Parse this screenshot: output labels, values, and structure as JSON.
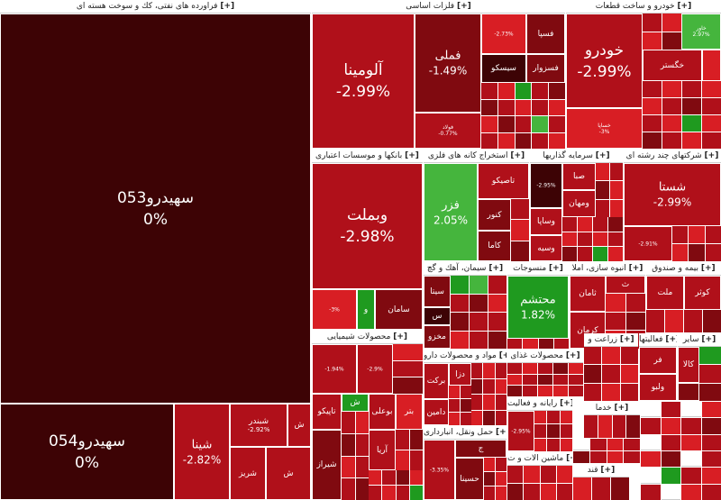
{
  "colors": {
    "darkest": "#3d0305",
    "dark": "#800a10",
    "red": "#b0101a",
    "bright": "#d81e24",
    "green": "#1f9a1f",
    "lightgreen": "#45b53d",
    "paper": "#ffffff"
  },
  "expand_mark": "[+]",
  "sectors": {
    "oil": "فراورده هاى نفتى، كك و سوخت هسته اى",
    "metals": "فلزات اساسى",
    "auto": "خودرو و ساخت قطعات",
    "banks": "بانكها و موسسات اعتبارى",
    "mining": "استخراج كانه هاى فلزى",
    "invest": "سرمايه گذاريها",
    "multi": "شركتهاى چند رشته اى",
    "chem": "محصولات شيميايى",
    "cement": "سيمان، آهك و گچ",
    "textile": "منسوجات",
    "mass": "انبوه سازى، املا",
    "insure": "بيمه و صندوق",
    "pharma": "مواد و محصولات دارو",
    "food": "محصولات غذاى",
    "agri": "زراعت و",
    "activity": "فعاليتها",
    "fin": "ساير",
    "it": "رايانه و فعاليت",
    "transport": "حمل ونقل، انبارداری",
    "machine": "ماشين الات و ت",
    "other1": "قند",
    "other2": "خدما"
  },
  "cells": {
    "sh053": {
      "name": "سهيدرو053",
      "pct": "0%"
    },
    "sh054": {
      "name": "سهيدرو054",
      "pct": "0%"
    },
    "shina": {
      "name": "شينا",
      "pct": "-2.82%"
    },
    "shabandar": {
      "name": "شبندر",
      "pct": "-2.92%"
    },
    "shariz": {
      "name": "شريز",
      "pct": ""
    },
    "oil_sh1": {
      "name": "ش",
      "pct": ""
    },
    "oil_sh2": {
      "name": "ش",
      "pct": ""
    },
    "alumina": {
      "name": "آلومينا",
      "pct": "-2.99%"
    },
    "fameli": {
      "name": "فملى",
      "pct": "-1.49%"
    },
    "fasa": {
      "name": "فسپا",
      "pct": ""
    },
    "fsazvar": {
      "name": "فسزوار",
      "pct": ""
    },
    "sisco": {
      "name": "سيسكو",
      "pct": ""
    },
    "met_s": {
      "name": "",
      "pct": "-2.73%"
    },
    "folad": {
      "name": "فولاد",
      "pct": "-0.77%"
    },
    "khodro": {
      "name": "خودرو",
      "pct": "-2.99%"
    },
    "khegostar": {
      "name": "خگستر",
      "pct": ""
    },
    "khsapa": {
      "name": "خساپا",
      "pct": "-3%"
    },
    "auto_s1": {
      "name": "خاور",
      "pct": "2.97%"
    },
    "vbemellat": {
      "name": "وبملت",
      "pct": "-2.98%"
    },
    "saman": {
      "name": "سامان",
      "pct": ""
    },
    "bank_v": {
      "name": "و",
      "pct": ""
    },
    "bank_s": {
      "name": "",
      "pct": "-3%"
    },
    "fazar": {
      "name": "فزر",
      "pct": "2.05%"
    },
    "tasiko": {
      "name": "تاصيكو",
      "pct": ""
    },
    "kaltor": {
      "name": "كنور",
      "pct": ""
    },
    "kama": {
      "name": "كاما",
      "pct": ""
    },
    "sabha": {
      "name": "صبا",
      "pct": ""
    },
    "vsapa": {
      "name": "وساپا",
      "pct": ""
    },
    "vmehan": {
      "name": "ومهان",
      "pct": ""
    },
    "vasieh": {
      "name": "وسيه",
      "pct": ""
    },
    "invest_s": {
      "name": "",
      "pct": "-2.95%"
    },
    "shasta": {
      "name": "شستا",
      "pct": "-2.99%"
    },
    "multi_s": {
      "name": "",
      "pct": "-2.91%"
    },
    "tapiko": {
      "name": "تاپيكو",
      "pct": ""
    },
    "shiraz": {
      "name": "شيراز",
      "pct": ""
    },
    "bouali": {
      "name": "بوعلى",
      "pct": ""
    },
    "aria": {
      "name": "آريا",
      "pct": ""
    },
    "chem_s1": {
      "name": "",
      "pct": "-1.94%"
    },
    "chem_s2": {
      "name": "",
      "pct": "-2.9%"
    },
    "chem_sh": {
      "name": "ش",
      "pct": ""
    },
    "sita": {
      "name": "سيتا",
      "pct": ""
    },
    "mkhzo": {
      "name": "مخزو",
      "pct": ""
    },
    "cem_s": {
      "name": "س",
      "pct": ""
    },
    "mohtesham": {
      "name": "محتشم",
      "pct": "1.82%"
    },
    "kerman": {
      "name": "كرمان",
      "pct": ""
    },
    "taman": {
      "name": "ثامان",
      "pct": ""
    },
    "mass_t": {
      "name": "ث",
      "pct": ""
    },
    "kotor": {
      "name": "كوثر",
      "pct": ""
    },
    "mellat": {
      "name": "ملت",
      "pct": ""
    },
    "barket": {
      "name": "بركت",
      "pct": ""
    },
    "damin": {
      "name": "دامين",
      "pct": ""
    },
    "ddaza": {
      "name": "دزا",
      "pct": ""
    },
    "batr": {
      "name": "بتر",
      "pct": ""
    },
    "hassna": {
      "name": "حسينا",
      "pct": ""
    },
    "kala": {
      "name": "كالا",
      "pct": ""
    },
    "far": {
      "name": "فر",
      "pct": ""
    },
    "vbo": {
      "name": "ولبو",
      "pct": ""
    },
    "it_s": {
      "name": "",
      "pct": "-2.95%"
    },
    "tr_s": {
      "name": "",
      "pct": "-3.35%"
    },
    "tr_j": {
      "name": "ج",
      "pct": ""
    }
  }
}
